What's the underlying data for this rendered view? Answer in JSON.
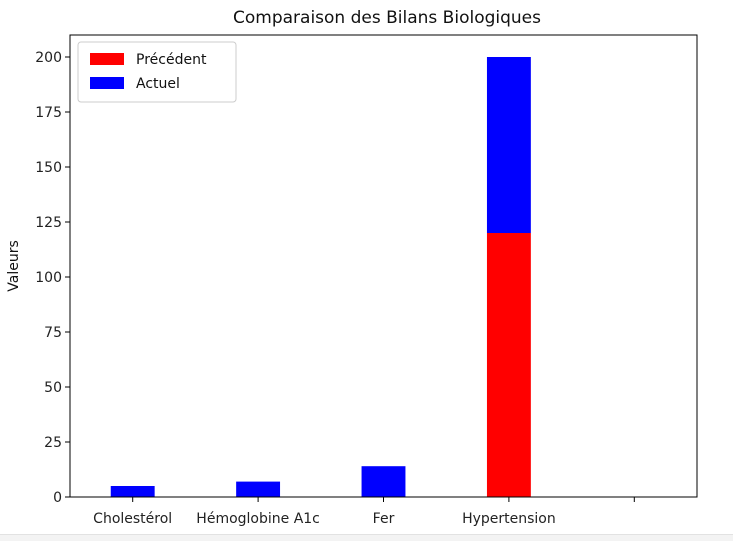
{
  "chart_data": {
    "type": "bar",
    "stacked": true,
    "title": "Comparaison des Bilans Biologiques",
    "xlabel": "",
    "ylabel": "Valeurs",
    "categories": [
      "Cholestérol",
      "Hémoglobine A1c",
      "Fer",
      "Hypertension",
      ""
    ],
    "series": [
      {
        "name": "Précédent",
        "color": "#ff0000",
        "values": [
          0,
          0,
          0,
          120,
          0
        ]
      },
      {
        "name": "Actuel",
        "color": "#0000ff",
        "values": [
          5,
          7,
          14,
          80,
          0
        ]
      }
    ],
    "ylim": [
      0,
      210
    ],
    "yticks": [
      0,
      25,
      50,
      75,
      100,
      125,
      150,
      175,
      200
    ],
    "grid": false,
    "legend_position": "top-left"
  }
}
